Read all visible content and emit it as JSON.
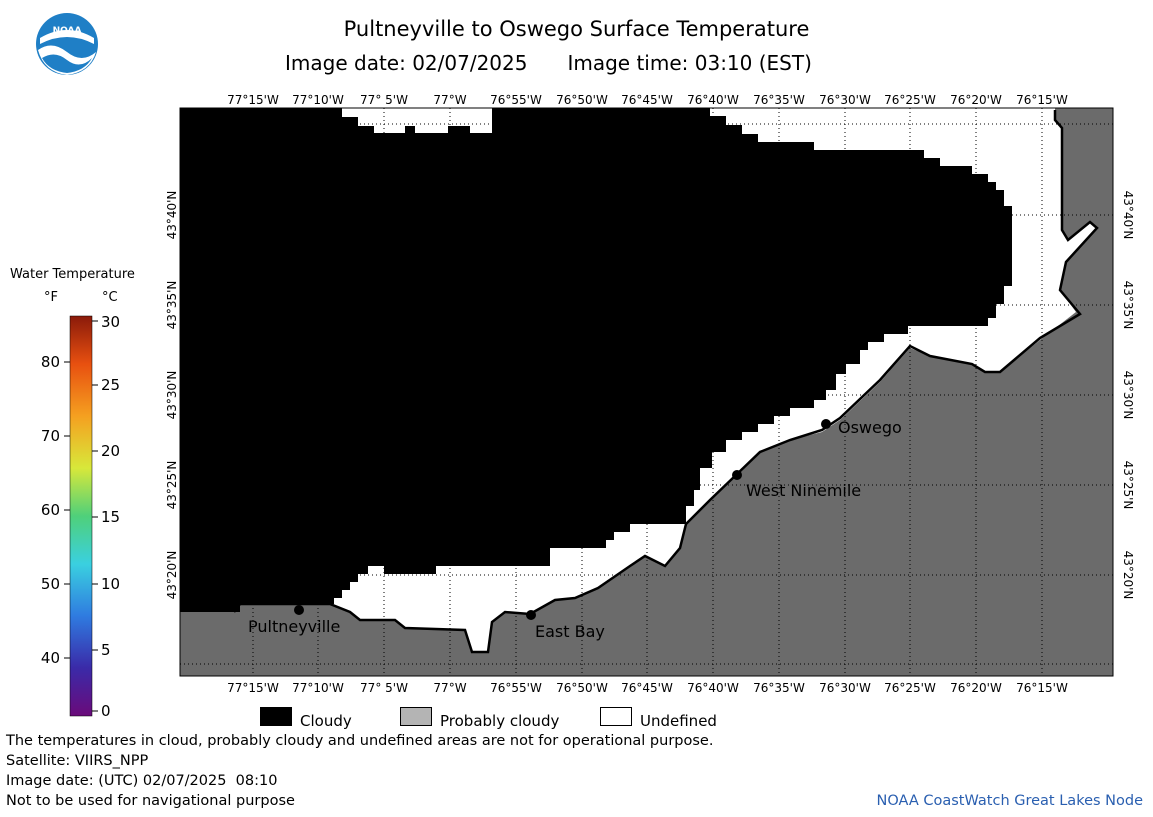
{
  "header": {
    "title": "Pultneyville to Oswego Surface Temperature",
    "image_date": "Image date: 02/07/2025",
    "image_time": "Image time: 03:10 (EST)"
  },
  "logo": {
    "text": "NOAA"
  },
  "legend": {
    "title": "Water Temperature",
    "unit_f": "°F",
    "unit_c": "°C",
    "f_ticks": [
      "80",
      "70",
      "60",
      "50",
      "40"
    ],
    "c_ticks": [
      "30",
      "25",
      "20",
      "15",
      "10",
      "5",
      "0"
    ]
  },
  "map": {
    "lon_labels": [
      "77°15'W",
      "77°10'W",
      "77° 5'W",
      "77°W",
      "76°55'W",
      "76°50'W",
      "76°45'W",
      "76°40'W",
      "76°35'W",
      "76°30'W",
      "76°25'W",
      "76°20'W",
      "76°15'W"
    ],
    "lat_labels": [
      "43°40'N",
      "43°35'N",
      "43°30'N",
      "43°25'N",
      "43°20'N"
    ],
    "places": [
      {
        "name": "Oswego"
      },
      {
        "name": "West Ninemile"
      },
      {
        "name": "Pultneyville"
      },
      {
        "name": "East Bay"
      }
    ],
    "colors": {
      "cloudy": "#000000",
      "land": "#6b6b6b",
      "undefined": "#ffffff",
      "probably_cloudy": "#b4b4b4"
    }
  },
  "key": [
    {
      "label": "Cloudy"
    },
    {
      "label": "Probably cloudy"
    },
    {
      "label": "Undefined"
    }
  ],
  "footer": {
    "disclaimer": "The temperatures in cloud, probably cloudy and undefined areas are not for operational purpose.",
    "satellite": "Satellite: VIIRS_NPP",
    "utc_date": "Image date: (UTC) 02/07/2025  08:10",
    "nav": "Not to be used for navigational purpose",
    "credit": "NOAA CoastWatch Great Lakes Node"
  }
}
